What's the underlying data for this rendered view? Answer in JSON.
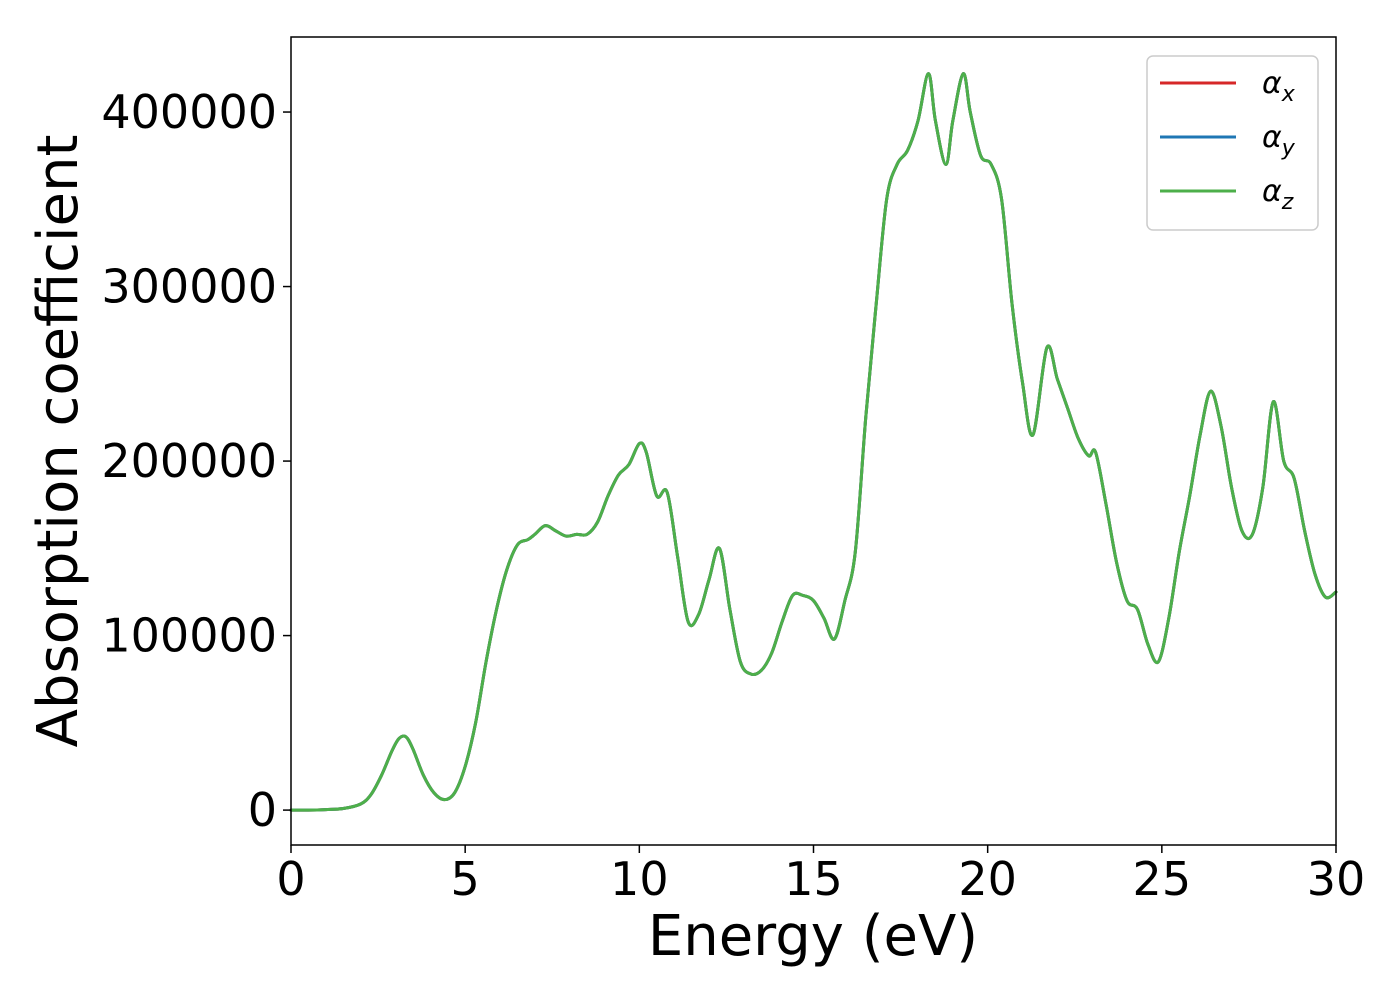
{
  "chart_data": {
    "type": "line",
    "title": "",
    "xlabel": "Energy (eV)",
    "ylabel": "Absorption coefficient",
    "xlim": [
      0,
      30
    ],
    "ylim": [
      -20000,
      443000
    ],
    "xticks": [
      0,
      5,
      10,
      15,
      20,
      25,
      30
    ],
    "xtick_labels": [
      "0",
      "5",
      "10",
      "15",
      "20",
      "25",
      "30"
    ],
    "yticks": [
      0,
      100000,
      200000,
      300000,
      400000
    ],
    "ytick_labels": [
      "0",
      "100000",
      "200000",
      "300000",
      "400000"
    ],
    "grid": false,
    "legend_position": "top-right",
    "colors": {
      "alpha_x": "#d62728",
      "alpha_y": "#1f77b4",
      "alpha_z": "#4daf4a"
    },
    "x": [
      0,
      0.5,
      1.0,
      1.5,
      2.0,
      2.3,
      2.6,
      2.9,
      3.1,
      3.3,
      3.5,
      3.8,
      4.1,
      4.4,
      4.7,
      5.0,
      5.3,
      5.6,
      5.9,
      6.2,
      6.5,
      6.8,
      7.0,
      7.3,
      7.6,
      7.9,
      8.2,
      8.5,
      8.8,
      9.1,
      9.4,
      9.7,
      10.0,
      10.2,
      10.5,
      10.8,
      11.1,
      11.4,
      11.7,
      12.0,
      12.3,
      12.6,
      12.9,
      13.2,
      13.5,
      13.8,
      14.1,
      14.4,
      14.7,
      15.0,
      15.3,
      15.6,
      15.9,
      16.2,
      16.5,
      16.8,
      17.1,
      17.4,
      17.7,
      18.0,
      18.3,
      18.5,
      18.8,
      19.0,
      19.3,
      19.5,
      19.8,
      20.1,
      20.4,
      20.7,
      21.0,
      21.3,
      21.7,
      22.0,
      22.3,
      22.6,
      22.9,
      23.1,
      23.4,
      23.7,
      24.0,
      24.3,
      24.6,
      24.9,
      25.2,
      25.5,
      25.8,
      26.1,
      26.4,
      26.7,
      27.0,
      27.3,
      27.6,
      27.9,
      28.2,
      28.5,
      28.8,
      29.1,
      29.4,
      29.7,
      30.0
    ],
    "series": [
      {
        "name": "α_x",
        "key": "alpha_x",
        "values": [
          0,
          0,
          300,
          900,
          3500,
          9000,
          20000,
          34000,
          41000,
          42000,
          35000,
          20000,
          10000,
          6000,
          10000,
          25000,
          50000,
          85000,
          115000,
          138000,
          152000,
          155000,
          158000,
          163000,
          160000,
          157000,
          158000,
          158000,
          165000,
          180000,
          192000,
          198000,
          210000,
          205000,
          180000,
          182000,
          145000,
          108000,
          112000,
          132000,
          150000,
          115000,
          85000,
          78000,
          80000,
          90000,
          108000,
          123000,
          123000,
          120000,
          110000,
          98000,
          120000,
          148000,
          225000,
          290000,
          350000,
          370000,
          378000,
          395000,
          422000,
          395000,
          370000,
          395000,
          422000,
          400000,
          375000,
          370000,
          350000,
          290000,
          245000,
          215000,
          265000,
          247000,
          230000,
          213000,
          203000,
          205000,
          175000,
          142000,
          120000,
          115000,
          95000,
          85000,
          110000,
          148000,
          180000,
          215000,
          240000,
          220000,
          185000,
          160000,
          158000,
          185000,
          234000,
          200000,
          190000,
          160000,
          135000,
          122000,
          125000
        ]
      },
      {
        "name": "α_y",
        "key": "alpha_y",
        "values": [
          0,
          0,
          300,
          900,
          3500,
          9000,
          20000,
          34000,
          41000,
          42000,
          35000,
          20000,
          10000,
          6000,
          10000,
          25000,
          50000,
          85000,
          115000,
          138000,
          152000,
          155000,
          158000,
          163000,
          160000,
          157000,
          158000,
          158000,
          165000,
          180000,
          192000,
          198000,
          210000,
          205000,
          180000,
          182000,
          145000,
          108000,
          112000,
          132000,
          150000,
          115000,
          85000,
          78000,
          80000,
          90000,
          108000,
          123000,
          123000,
          120000,
          110000,
          98000,
          120000,
          148000,
          225000,
          290000,
          350000,
          370000,
          378000,
          395000,
          422000,
          395000,
          370000,
          395000,
          422000,
          400000,
          375000,
          370000,
          350000,
          290000,
          245000,
          215000,
          265000,
          247000,
          230000,
          213000,
          203000,
          205000,
          175000,
          142000,
          120000,
          115000,
          95000,
          85000,
          110000,
          148000,
          180000,
          215000,
          240000,
          220000,
          185000,
          160000,
          158000,
          185000,
          234000,
          200000,
          190000,
          160000,
          135000,
          122000,
          125000
        ]
      },
      {
        "name": "α_z",
        "key": "alpha_z",
        "values": [
          0,
          0,
          300,
          900,
          3500,
          9000,
          20000,
          34000,
          41000,
          42000,
          35000,
          20000,
          10000,
          6000,
          10000,
          25000,
          50000,
          85000,
          115000,
          138000,
          152000,
          155000,
          158000,
          163000,
          160000,
          157000,
          158000,
          158000,
          165000,
          180000,
          192000,
          198000,
          210000,
          205000,
          180000,
          182000,
          145000,
          108000,
          112000,
          132000,
          150000,
          115000,
          85000,
          78000,
          80000,
          90000,
          108000,
          123000,
          123000,
          120000,
          110000,
          98000,
          120000,
          148000,
          225000,
          290000,
          350000,
          370000,
          378000,
          395000,
          422000,
          395000,
          370000,
          395000,
          422000,
          400000,
          375000,
          370000,
          350000,
          290000,
          245000,
          215000,
          265000,
          247000,
          230000,
          213000,
          203000,
          205000,
          175000,
          142000,
          120000,
          115000,
          95000,
          85000,
          110000,
          148000,
          180000,
          215000,
          240000,
          220000,
          185000,
          160000,
          158000,
          185000,
          234000,
          200000,
          190000,
          160000,
          135000,
          122000,
          125000
        ]
      }
    ],
    "legend": [
      {
        "symbol": "α",
        "subscript": "x",
        "key": "alpha_x"
      },
      {
        "symbol": "α",
        "subscript": "y",
        "key": "alpha_y"
      },
      {
        "symbol": "α",
        "subscript": "z",
        "key": "alpha_z"
      }
    ]
  }
}
